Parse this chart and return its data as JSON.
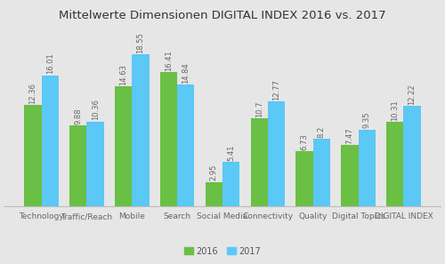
{
  "title": "Mittelwerte Dimensionen DIGITAL INDEX 2016 vs. 2017",
  "categories": [
    "Technology",
    "Traffic/Reach",
    "Mobile",
    "Search",
    "Social Media",
    "Connectivity",
    "Quality",
    "Digital Topics",
    "DIGITAL INDEX"
  ],
  "values_2016": [
    12.36,
    9.88,
    14.63,
    16.41,
    2.95,
    10.7,
    6.73,
    7.47,
    10.31
  ],
  "values_2017": [
    16.01,
    10.36,
    18.55,
    14.84,
    5.41,
    12.77,
    8.2,
    9.35,
    12.22
  ],
  "color_2016": "#6abf45",
  "color_2017": "#5bc8f5",
  "background_color": "#e6e6e6",
  "title_fontsize": 9.5,
  "label_fontsize": 6.0,
  "tick_fontsize": 6.5,
  "legend_labels": [
    "2016",
    "2017"
  ],
  "bar_width": 0.38,
  "ylim": [
    0,
    22
  ]
}
